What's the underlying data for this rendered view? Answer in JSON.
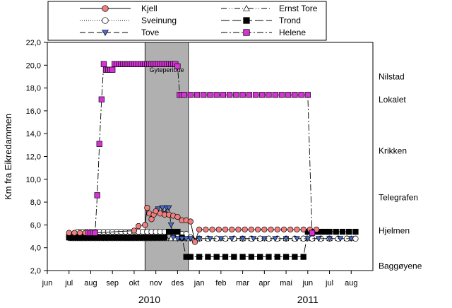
{
  "chart_data": {
    "type": "line",
    "ylabel": "Km fra Eikredammen",
    "ylim": [
      2.0,
      22.0
    ],
    "yticks": [
      "2,0",
      "4,0",
      "6,0",
      "8,0",
      "10,0",
      "12,0",
      "14,0",
      "16,0",
      "18,0",
      "20,0",
      "22,0"
    ],
    "xlim": [
      -1,
      14
    ],
    "xticks": [
      "jun",
      "jul",
      "aug",
      "sep",
      "okt",
      "nov",
      "des",
      "jan",
      "feb",
      "mar",
      "apr",
      "mai",
      "jun",
      "jul",
      "aug"
    ],
    "year_labels": [
      {
        "text": "2010",
        "x": 3.7
      },
      {
        "text": "2011",
        "x": 11.0
      }
    ],
    "shaded_period": {
      "label": "Gyteperiode",
      "x_start": 3.5,
      "x_end": 5.5
    },
    "right_labels": [
      {
        "text": "Nilstad",
        "y": 19.0
      },
      {
        "text": "Lokalet",
        "y": 17.0
      },
      {
        "text": "Krikken",
        "y": 12.5
      },
      {
        "text": "Telegrafen",
        "y": 8.4
      },
      {
        "text": "Hjelmen",
        "y": 5.5
      },
      {
        "text": "Baggøyene",
        "y": 2.4
      }
    ],
    "legend": {
      "placement": "top",
      "columns": 2
    },
    "series": [
      {
        "name": "Kjell",
        "marker": "circle",
        "dash": "solid",
        "color": "#f08080",
        "x": [
          0.0,
          0.25,
          0.5,
          0.75,
          1.0,
          1.2,
          3.0,
          3.2,
          3.5,
          3.6,
          3.7,
          3.8,
          3.9,
          4.0,
          4.2,
          4.4,
          4.6,
          4.8,
          5.0,
          5.2,
          5.4,
          5.6,
          5.8,
          6.0,
          6.3,
          6.6,
          6.9,
          7.2,
          7.5,
          7.8,
          8.1,
          8.4,
          8.7,
          9.0,
          9.3,
          9.6,
          9.9,
          10.2,
          10.5,
          10.8,
          11.1,
          11.4
        ],
        "y": [
          5.3,
          5.3,
          5.3,
          5.3,
          5.3,
          5.3,
          5.5,
          5.9,
          6.0,
          7.5,
          7.0,
          6.5,
          6.9,
          7.2,
          7.0,
          6.9,
          6.9,
          6.8,
          6.7,
          6.4,
          6.4,
          6.3,
          4.5,
          5.6,
          5.6,
          5.6,
          5.6,
          5.6,
          5.6,
          5.6,
          5.6,
          5.6,
          5.6,
          5.6,
          5.6,
          5.6,
          5.6,
          5.6,
          5.6,
          5.6,
          5.6,
          5.6
        ]
      },
      {
        "name": "Sveinung",
        "marker": "circle-open",
        "dash": "dotted",
        "color": "#ffffff",
        "x": [
          0.2,
          0.4,
          0.6,
          0.8,
          1.0,
          1.2,
          1.4,
          1.6,
          1.8,
          2.0,
          2.2,
          2.4,
          2.6,
          2.8,
          3.0,
          3.2,
          3.4,
          3.6,
          3.8,
          4.0,
          4.2,
          4.4,
          4.6,
          4.8,
          5.0,
          5.2,
          5.4,
          5.6,
          6.0,
          6.4,
          6.8,
          7.2,
          7.6,
          8.0,
          8.4,
          8.8,
          9.2,
          9.6,
          10.0,
          10.4,
          10.8,
          11.2,
          11.6,
          12.0,
          12.4,
          12.8,
          13.2
        ],
        "y": [
          5.2,
          5.4,
          5.4,
          5.4,
          5.4,
          5.4,
          5.4,
          5.4,
          5.4,
          5.4,
          5.4,
          5.4,
          5.4,
          5.4,
          5.4,
          5.4,
          5.4,
          5.4,
          5.4,
          5.4,
          5.4,
          5.4,
          5.4,
          5.3,
          5.2,
          5.2,
          5.2,
          4.9,
          4.8,
          4.8,
          4.8,
          4.8,
          4.8,
          4.8,
          4.8,
          4.8,
          4.8,
          4.8,
          4.8,
          4.8,
          4.8,
          4.8,
          4.8,
          4.8,
          4.8,
          4.8,
          4.8
        ]
      },
      {
        "name": "Tove",
        "marker": "triangle-down",
        "dash": "dashed",
        "color": "#4a6fd4",
        "x": [
          4.1,
          4.2,
          4.3,
          4.4,
          4.5,
          4.6,
          4.7,
          4.8,
          5.0,
          5.2,
          5.4,
          5.6,
          6.0,
          6.5,
          7.0,
          7.5,
          8.0,
          8.5,
          9.0,
          9.5,
          10.0,
          10.5,
          11.0,
          11.5,
          12.0,
          12.5,
          13.0
        ],
        "y": [
          7.4,
          7.0,
          7.5,
          7.0,
          7.5,
          7.5,
          6.0,
          4.9,
          4.8,
          4.8,
          4.8,
          4.8,
          4.8,
          4.8,
          4.8,
          4.8,
          4.8,
          4.8,
          4.8,
          4.8,
          4.8,
          4.8,
          4.8,
          4.8,
          4.8,
          4.8,
          4.8
        ]
      },
      {
        "name": "Ernst Tore",
        "marker": "triangle-open",
        "dash": "dashdotdot",
        "color": "#ffffff",
        "x": [
          0.1,
          0.3,
          0.5,
          0.7,
          0.9,
          1.1,
          1.3,
          1.5,
          1.7,
          1.9,
          2.1,
          2.3,
          2.5,
          2.7,
          2.9,
          3.1,
          3.3,
          3.5,
          3.7,
          3.9,
          4.1,
          4.3,
          4.5,
          4.7,
          4.9,
          5.1,
          5.3,
          5.5,
          5.7,
          6.0,
          6.4,
          6.8,
          7.2,
          7.6,
          8.0,
          8.4,
          8.8,
          9.2,
          9.6,
          10.0,
          10.4,
          10.8,
          11.2,
          11.6,
          12.0,
          12.4,
          12.8,
          13.0
        ],
        "y": [
          4.8,
          4.8,
          4.8,
          4.8,
          4.8,
          4.8,
          4.8,
          4.8,
          4.8,
          4.8,
          4.8,
          4.8,
          4.8,
          4.8,
          4.8,
          4.8,
          4.8,
          4.8,
          4.8,
          4.8,
          4.8,
          4.8,
          4.8,
          4.8,
          4.8,
          4.8,
          4.8,
          4.8,
          4.8,
          4.8,
          4.8,
          4.8,
          4.8,
          4.8,
          4.8,
          4.8,
          4.8,
          4.8,
          4.8,
          4.8,
          4.8,
          4.8,
          4.8,
          4.8,
          4.8,
          4.8,
          4.8,
          4.8
        ]
      },
      {
        "name": "Trond",
        "marker": "square",
        "dash": "longdash",
        "color": "#000000",
        "x": [
          0.0,
          0.2,
          0.4,
          0.6,
          0.8,
          1.0,
          1.2,
          1.4,
          1.6,
          1.8,
          2.0,
          2.2,
          2.4,
          2.6,
          2.8,
          3.0,
          3.2,
          3.4,
          3.6,
          3.8,
          4.0,
          4.2,
          4.4,
          4.6,
          4.8,
          5.0,
          5.2,
          5.4,
          5.6,
          6.0,
          6.4,
          6.8,
          7.2,
          7.6,
          8.0,
          8.4,
          8.8,
          9.2,
          9.6,
          10.0,
          10.4,
          10.8,
          11.0,
          11.2,
          11.4,
          11.6,
          11.8,
          12.0,
          12.3,
          12.6,
          12.9,
          13.2
        ],
        "y": [
          4.9,
          4.9,
          4.9,
          4.9,
          4.9,
          4.9,
          4.9,
          4.9,
          4.9,
          4.9,
          4.9,
          4.9,
          4.9,
          4.9,
          4.9,
          4.9,
          4.9,
          4.9,
          4.9,
          4.9,
          4.9,
          4.9,
          4.9,
          5.4,
          5.4,
          5.4,
          4.9,
          3.2,
          3.2,
          3.2,
          3.2,
          3.2,
          3.2,
          3.2,
          3.2,
          3.2,
          3.2,
          3.2,
          3.2,
          3.2,
          3.2,
          3.2,
          5.4,
          5.4,
          5.4,
          5.4,
          5.4,
          5.4,
          5.4,
          5.4,
          5.4,
          5.4
        ]
      },
      {
        "name": "Helene",
        "marker": "square",
        "dash": "dashdot",
        "color": "#d633d6",
        "x": [
          0.9,
          1.0,
          1.1,
          1.2,
          1.3,
          1.4,
          1.5,
          1.6,
          1.7,
          1.8,
          1.9,
          2.0,
          2.1,
          2.2,
          2.3,
          2.4,
          2.5,
          2.6,
          2.7,
          2.8,
          2.9,
          3.0,
          3.1,
          3.2,
          3.3,
          3.4,
          3.5,
          3.6,
          3.7,
          3.8,
          3.9,
          4.0,
          4.1,
          4.2,
          4.3,
          4.4,
          4.5,
          4.6,
          4.7,
          4.8,
          4.9,
          5.0,
          5.1,
          5.2,
          5.3,
          5.6,
          5.9,
          6.2,
          6.5,
          6.8,
          7.1,
          7.4,
          7.7,
          8.0,
          8.3,
          8.6,
          8.9,
          9.2,
          9.5,
          9.8,
          10.1,
          10.4,
          10.7,
          11.0,
          11.2
        ],
        "y": [
          5.3,
          5.3,
          5.3,
          5.3,
          8.6,
          13.1,
          17.0,
          20.1,
          19.6,
          19.6,
          19.6,
          19.6,
          20.1,
          20.1,
          20.1,
          20.1,
          20.1,
          20.1,
          20.1,
          20.1,
          20.1,
          20.1,
          20.1,
          20.1,
          20.1,
          20.1,
          20.1,
          20.1,
          20.1,
          20.1,
          20.1,
          20.1,
          20.1,
          20.1,
          20.1,
          20.1,
          20.1,
          20.1,
          20.1,
          20.1,
          20.1,
          19.9,
          17.4,
          17.4,
          17.4,
          17.4,
          17.4,
          17.4,
          17.4,
          17.4,
          17.4,
          17.4,
          17.4,
          17.4,
          17.4,
          17.4,
          17.4,
          17.4,
          17.4,
          17.4,
          17.4,
          17.4,
          17.4,
          17.4,
          5.3
        ]
      }
    ]
  }
}
